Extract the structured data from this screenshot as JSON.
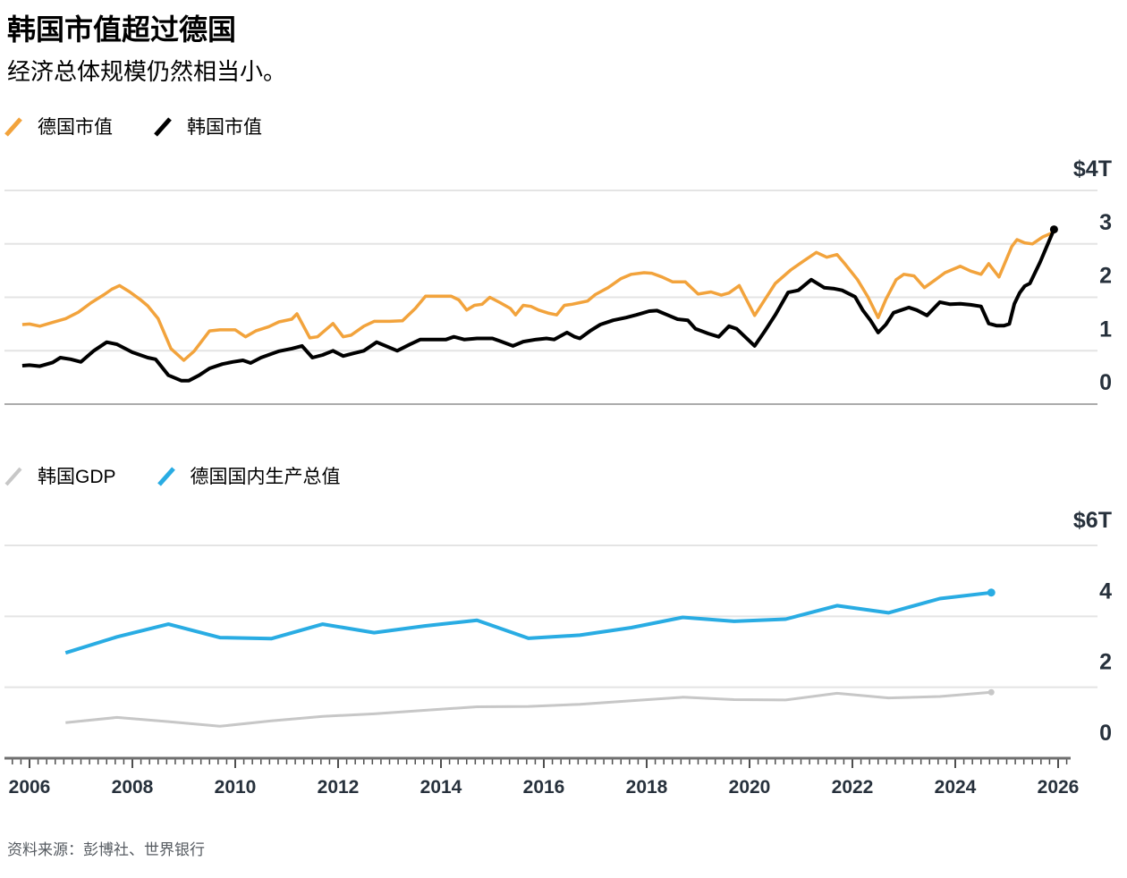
{
  "header": {
    "title": "韩国市值超过德国",
    "subtitle": "经济总体规模仍然相当小。"
  },
  "source": {
    "label": "资料来源：彭博社、世界银行"
  },
  "palette": {
    "germany_market_cap": "#F2A33C",
    "korea_market_cap": "#000000",
    "korea_gdp": "#C7C7C7",
    "germany_gdp": "#29ACE3",
    "gridline": "#E4E4E4",
    "zero_line": "#ABABAB",
    "axis_line": "#6F6F6F",
    "tick": "#4E4E4E",
    "axis_label": "#27313C"
  },
  "x_axis": {
    "start": 2006,
    "end": 2026,
    "labels": [
      "2006",
      "2008",
      "2010",
      "2012",
      "2014",
      "2016",
      "2018",
      "2020",
      "2022",
      "2024",
      "2026"
    ]
  },
  "chart_data": [
    {
      "type": "line",
      "panel": "top",
      "unit": "USD trillions",
      "ylim": [
        0,
        4.9
      ],
      "grid": true,
      "legend_position": "top-left",
      "yticks": [
        {
          "v": 4,
          "label": "$4T"
        },
        {
          "v": 3,
          "label": "3"
        },
        {
          "v": 2,
          "label": "2"
        },
        {
          "v": 1,
          "label": "1"
        },
        {
          "v": 0,
          "label": "0"
        }
      ],
      "series": [
        {
          "name": "德国市值",
          "color": "#F2A33C",
          "width": 3.5,
          "end_dot": false,
          "points": [
            [
              2005.86,
              1.49
            ],
            [
              2006.0,
              1.5
            ],
            [
              2006.2,
              1.46
            ],
            [
              2006.45,
              1.53
            ],
            [
              2006.7,
              1.6
            ],
            [
              2006.95,
              1.72
            ],
            [
              2007.2,
              1.9
            ],
            [
              2007.45,
              2.05
            ],
            [
              2007.6,
              2.15
            ],
            [
              2007.75,
              2.22
            ],
            [
              2007.95,
              2.1
            ],
            [
              2008.15,
              1.96
            ],
            [
              2008.3,
              1.84
            ],
            [
              2008.5,
              1.6
            ],
            [
              2008.75,
              1.04
            ],
            [
              2009.0,
              0.82
            ],
            [
              2009.2,
              0.99
            ],
            [
              2009.5,
              1.37
            ],
            [
              2009.7,
              1.39
            ],
            [
              2010.0,
              1.39
            ],
            [
              2010.2,
              1.26
            ],
            [
              2010.4,
              1.37
            ],
            [
              2010.65,
              1.45
            ],
            [
              2010.85,
              1.54
            ],
            [
              2011.1,
              1.59
            ],
            [
              2011.2,
              1.69
            ],
            [
              2011.45,
              1.24
            ],
            [
              2011.6,
              1.26
            ],
            [
              2011.9,
              1.51
            ],
            [
              2012.1,
              1.26
            ],
            [
              2012.25,
              1.29
            ],
            [
              2012.5,
              1.46
            ],
            [
              2012.7,
              1.55
            ],
            [
              2013.0,
              1.55
            ],
            [
              2013.25,
              1.56
            ],
            [
              2013.5,
              1.79
            ],
            [
              2013.7,
              2.02
            ],
            [
              2014.2,
              2.02
            ],
            [
              2014.35,
              1.95
            ],
            [
              2014.5,
              1.76
            ],
            [
              2014.65,
              1.85
            ],
            [
              2014.8,
              1.87
            ],
            [
              2014.95,
              2.0
            ],
            [
              2015.15,
              1.9
            ],
            [
              2015.35,
              1.79
            ],
            [
              2015.45,
              1.67
            ],
            [
              2015.6,
              1.85
            ],
            [
              2015.75,
              1.83
            ],
            [
              2015.9,
              1.76
            ],
            [
              2016.1,
              1.7
            ],
            [
              2016.25,
              1.67
            ],
            [
              2016.4,
              1.85
            ],
            [
              2016.55,
              1.87
            ],
            [
              2016.7,
              1.9
            ],
            [
              2016.85,
              1.93
            ],
            [
              2017.0,
              2.05
            ],
            [
              2017.25,
              2.18
            ],
            [
              2017.5,
              2.35
            ],
            [
              2017.7,
              2.43
            ],
            [
              2017.95,
              2.46
            ],
            [
              2018.1,
              2.45
            ],
            [
              2018.3,
              2.38
            ],
            [
              2018.5,
              2.29
            ],
            [
              2018.75,
              2.29
            ],
            [
              2019.0,
              2.06
            ],
            [
              2019.25,
              2.1
            ],
            [
              2019.45,
              2.04
            ],
            [
              2019.6,
              2.08
            ],
            [
              2019.8,
              2.22
            ],
            [
              2020.1,
              1.66
            ],
            [
              2020.3,
              1.96
            ],
            [
              2020.5,
              2.26
            ],
            [
              2020.8,
              2.51
            ],
            [
              2021.05,
              2.68
            ],
            [
              2021.3,
              2.84
            ],
            [
              2021.5,
              2.75
            ],
            [
              2021.7,
              2.8
            ],
            [
              2021.85,
              2.63
            ],
            [
              2022.1,
              2.33
            ],
            [
              2022.3,
              2.01
            ],
            [
              2022.5,
              1.62
            ],
            [
              2022.65,
              1.96
            ],
            [
              2022.85,
              2.33
            ],
            [
              2023.0,
              2.43
            ],
            [
              2023.2,
              2.4
            ],
            [
              2023.4,
              2.18
            ],
            [
              2023.6,
              2.32
            ],
            [
              2023.8,
              2.46
            ],
            [
              2024.1,
              2.58
            ],
            [
              2024.3,
              2.49
            ],
            [
              2024.5,
              2.43
            ],
            [
              2024.65,
              2.63
            ],
            [
              2024.85,
              2.38
            ],
            [
              2025.1,
              2.95
            ],
            [
              2025.2,
              3.08
            ],
            [
              2025.35,
              3.02
            ],
            [
              2025.5,
              3.0
            ],
            [
              2025.7,
              3.13
            ],
            [
              2025.92,
              3.22
            ]
          ]
        },
        {
          "name": "韩国市值",
          "color": "#000000",
          "width": 4,
          "end_dot": true,
          "points": [
            [
              2005.86,
              0.72
            ],
            [
              2006.0,
              0.73
            ],
            [
              2006.2,
              0.71
            ],
            [
              2006.45,
              0.78
            ],
            [
              2006.6,
              0.87
            ],
            [
              2006.8,
              0.84
            ],
            [
              2007.0,
              0.79
            ],
            [
              2007.25,
              1.0
            ],
            [
              2007.5,
              1.16
            ],
            [
              2007.7,
              1.12
            ],
            [
              2008.0,
              0.97
            ],
            [
              2008.15,
              0.92
            ],
            [
              2008.3,
              0.87
            ],
            [
              2008.45,
              0.84
            ],
            [
              2008.7,
              0.54
            ],
            [
              2008.95,
              0.44
            ],
            [
              2009.1,
              0.44
            ],
            [
              2009.3,
              0.54
            ],
            [
              2009.5,
              0.67
            ],
            [
              2009.75,
              0.75
            ],
            [
              2009.95,
              0.79
            ],
            [
              2010.15,
              0.82
            ],
            [
              2010.3,
              0.77
            ],
            [
              2010.5,
              0.87
            ],
            [
              2010.85,
              0.99
            ],
            [
              2011.1,
              1.04
            ],
            [
              2011.3,
              1.09
            ],
            [
              2011.5,
              0.87
            ],
            [
              2011.7,
              0.92
            ],
            [
              2011.9,
              1.0
            ],
            [
              2012.1,
              0.9
            ],
            [
              2012.3,
              0.95
            ],
            [
              2012.5,
              1.0
            ],
            [
              2012.75,
              1.16
            ],
            [
              2013.15,
              1.0
            ],
            [
              2013.4,
              1.12
            ],
            [
              2013.6,
              1.21
            ],
            [
              2014.1,
              1.21
            ],
            [
              2014.25,
              1.26
            ],
            [
              2014.45,
              1.21
            ],
            [
              2014.7,
              1.23
            ],
            [
              2015.0,
              1.23
            ],
            [
              2015.15,
              1.18
            ],
            [
              2015.4,
              1.09
            ],
            [
              2015.6,
              1.17
            ],
            [
              2015.85,
              1.21
            ],
            [
              2016.05,
              1.23
            ],
            [
              2016.2,
              1.21
            ],
            [
              2016.45,
              1.34
            ],
            [
              2016.6,
              1.26
            ],
            [
              2016.7,
              1.23
            ],
            [
              2016.9,
              1.37
            ],
            [
              2017.1,
              1.49
            ],
            [
              2017.35,
              1.57
            ],
            [
              2017.6,
              1.62
            ],
            [
              2017.8,
              1.67
            ],
            [
              2018.05,
              1.74
            ],
            [
              2018.2,
              1.75
            ],
            [
              2018.4,
              1.67
            ],
            [
              2018.6,
              1.59
            ],
            [
              2018.8,
              1.57
            ],
            [
              2018.95,
              1.41
            ],
            [
              2019.2,
              1.32
            ],
            [
              2019.4,
              1.26
            ],
            [
              2019.6,
              1.46
            ],
            [
              2019.75,
              1.41
            ],
            [
              2020.1,
              1.09
            ],
            [
              2020.3,
              1.37
            ],
            [
              2020.5,
              1.67
            ],
            [
              2020.75,
              2.09
            ],
            [
              2020.95,
              2.13
            ],
            [
              2021.2,
              2.33
            ],
            [
              2021.45,
              2.18
            ],
            [
              2021.65,
              2.16
            ],
            [
              2021.8,
              2.13
            ],
            [
              2022.05,
              2.01
            ],
            [
              2022.2,
              1.76
            ],
            [
              2022.35,
              1.57
            ],
            [
              2022.5,
              1.34
            ],
            [
              2022.65,
              1.49
            ],
            [
              2022.8,
              1.71
            ],
            [
              2022.95,
              1.76
            ],
            [
              2023.1,
              1.81
            ],
            [
              2023.25,
              1.76
            ],
            [
              2023.45,
              1.66
            ],
            [
              2023.7,
              1.91
            ],
            [
              2023.9,
              1.87
            ],
            [
              2024.1,
              1.88
            ],
            [
              2024.3,
              1.86
            ],
            [
              2024.5,
              1.83
            ],
            [
              2024.65,
              1.51
            ],
            [
              2024.8,
              1.47
            ],
            [
              2024.95,
              1.47
            ],
            [
              2025.05,
              1.5
            ],
            [
              2025.15,
              1.88
            ],
            [
              2025.25,
              2.08
            ],
            [
              2025.35,
              2.21
            ],
            [
              2025.45,
              2.26
            ],
            [
              2025.65,
              2.66
            ],
            [
              2025.8,
              3.0
            ],
            [
              2025.92,
              3.27
            ]
          ]
        }
      ]
    },
    {
      "type": "line",
      "panel": "bottom",
      "unit": "USD trillions",
      "ylim": [
        0,
        6.6
      ],
      "grid": true,
      "legend_position": "top-left",
      "yticks": [
        {
          "v": 6,
          "label": "$6T"
        },
        {
          "v": 4,
          "label": "4"
        },
        {
          "v": 2,
          "label": "2"
        },
        {
          "v": 0,
          "label": "0"
        }
      ],
      "series": [
        {
          "name": "韩国GDP",
          "color": "#C7C7C7",
          "width": 3,
          "end_dot": true,
          "years": [
            2006,
            2007,
            2008,
            2009,
            2010,
            2011,
            2012,
            2013,
            2014,
            2015,
            2016,
            2017,
            2018,
            2019,
            2020,
            2021,
            2022,
            2023,
            2024
          ],
          "values": [
            1.0,
            1.15,
            1.03,
            0.9,
            1.05,
            1.18,
            1.25,
            1.35,
            1.45,
            1.46,
            1.52,
            1.62,
            1.72,
            1.65,
            1.64,
            1.83,
            1.7,
            1.74,
            1.86
          ]
        },
        {
          "name": "德国国内生产总值",
          "color": "#29ACE3",
          "width": 4,
          "end_dot": true,
          "years": [
            2006,
            2007,
            2008,
            2009,
            2010,
            2011,
            2012,
            2013,
            2014,
            2015,
            2016,
            2017,
            2018,
            2019,
            2020,
            2021,
            2022,
            2023,
            2024
          ],
          "values": [
            2.97,
            3.42,
            3.78,
            3.4,
            3.37,
            3.78,
            3.54,
            3.73,
            3.89,
            3.38,
            3.47,
            3.68,
            3.97,
            3.86,
            3.92,
            4.3,
            4.1,
            4.5,
            4.67
          ]
        }
      ]
    }
  ]
}
